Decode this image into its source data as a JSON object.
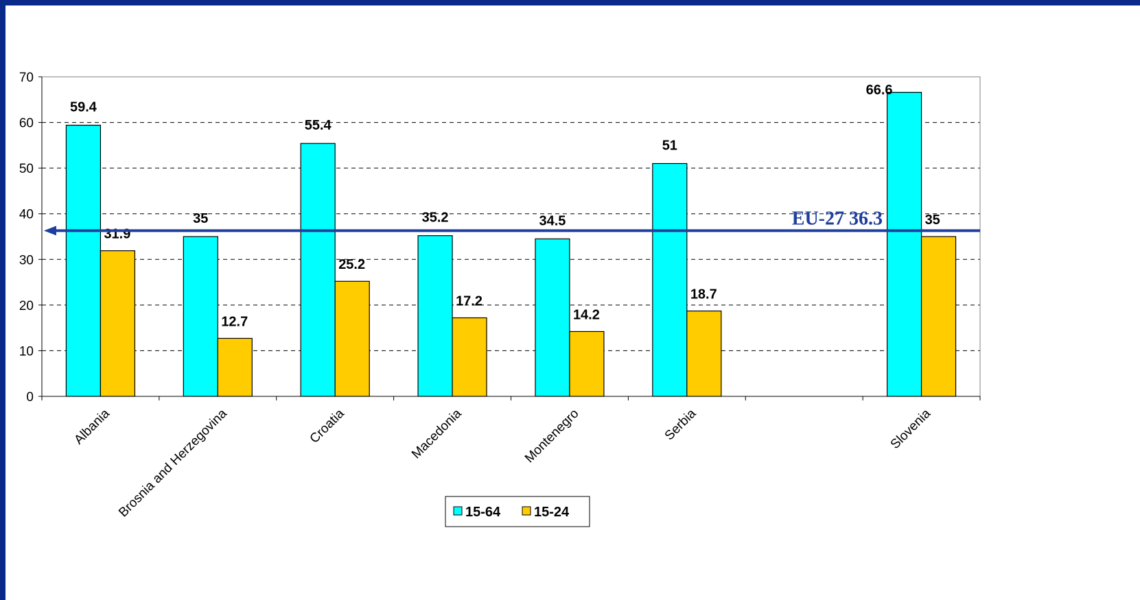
{
  "chart_data": {
    "type": "bar",
    "categories": [
      "Albania",
      "Brosnia and Herzegovina",
      "Croatia",
      "Macedonia",
      "Montenegro",
      "Serbia",
      "",
      "Slovenia"
    ],
    "series": [
      {
        "name": "15-64",
        "values": [
          59.4,
          35,
          55.4,
          35.2,
          34.5,
          51,
          null,
          66.6
        ],
        "color": "#00ffff"
      },
      {
        "name": "15-24",
        "values": [
          31.9,
          12.7,
          25.2,
          17.2,
          14.2,
          18.7,
          null,
          35
        ],
        "color": "#ffcc00"
      }
    ],
    "data_labels": {
      "15-64": [
        "59.4",
        "35",
        "55.4",
        "35.2",
        "34.5",
        "51",
        "",
        "66.6"
      ],
      "15-24": [
        "31.9",
        "12.7",
        "25.2",
        "17.2",
        "14.2",
        "18.7",
        "",
        "35"
      ]
    },
    "y_ticks": [
      "0",
      "10",
      "20",
      "30",
      "40",
      "50",
      "60",
      "70"
    ],
    "ylim": [
      0,
      70
    ],
    "grid": true,
    "grid_style": "dashed",
    "legend_position": "bottom",
    "reference_line": {
      "label": "EU-27 36.3",
      "value": 36.3,
      "color": "#1f3f9f"
    },
    "title": "",
    "xlabel": "",
    "ylabel": ""
  }
}
